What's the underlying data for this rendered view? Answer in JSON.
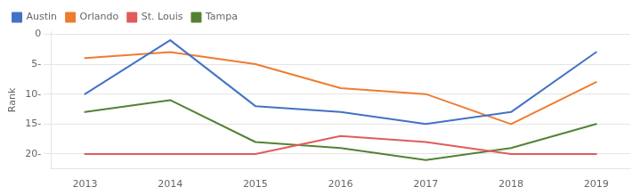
{
  "chart_data": {
    "type": "line",
    "x": [
      2013,
      2014,
      2015,
      2016,
      2017,
      2018,
      2019
    ],
    "xlim": [
      2012.6,
      2019.4
    ],
    "xticks": [
      2013,
      2014,
      2015,
      2016,
      2017,
      2018,
      2019
    ],
    "ylim": [
      22.5,
      -0.5
    ],
    "yticks": [
      0,
      {
        "value": 5,
        "label": "5-"
      },
      {
        "value": 10,
        "label": "10-"
      },
      {
        "value": 15,
        "label": "15-"
      },
      {
        "value": 20,
        "label": "20-"
      }
    ],
    "ylabel": "Rank",
    "grid": "y",
    "legend": "upper left",
    "series": [
      {
        "name": "Austin",
        "color": "#4472C4",
        "values": [
          10,
          1,
          12,
          13,
          15,
          13,
          3
        ]
      },
      {
        "name": "Orlando",
        "color": "#ED7D31",
        "values": [
          4,
          3,
          5,
          9,
          10,
          15,
          8
        ]
      },
      {
        "name": "St. Louis",
        "color": "#E05C5C",
        "values": [
          20,
          20,
          20,
          17,
          18,
          20,
          20
        ]
      },
      {
        "name": "Tampa",
        "color": "#548235",
        "values": [
          13,
          11,
          18,
          19,
          21,
          19,
          15
        ]
      }
    ]
  }
}
